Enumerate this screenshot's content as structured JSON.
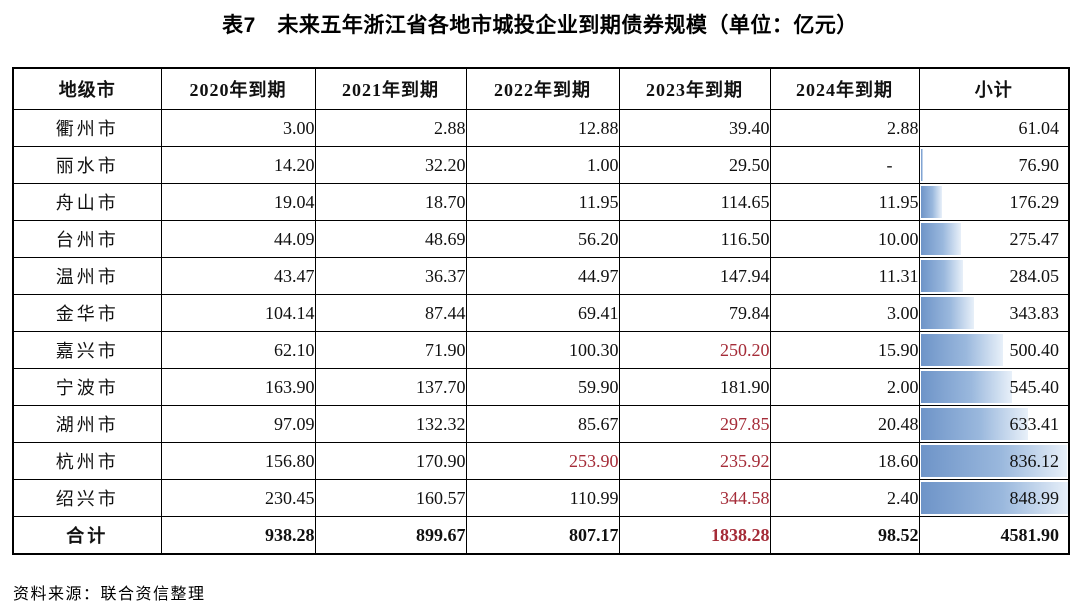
{
  "title": "表7　未来五年浙江省各地市城投企业到期债券规模（单位：亿元）",
  "source_note": "资料来源：联合资信整理",
  "colors": {
    "highlight_bg": "#f8c9ce",
    "highlight_text": "#a52c38",
    "databar_start": "#6e94c8",
    "databar_mid": "#9ab8dd",
    "databar_end": "#e8f0f9",
    "border": "#000000"
  },
  "table": {
    "columns": [
      "地级市",
      "2020年到期",
      "2021年到期",
      "2022年到期",
      "2023年到期",
      "2024年到期",
      "小计"
    ],
    "rows": [
      {
        "city": "衢州市",
        "values": [
          "3.00",
          "2.88",
          "12.88",
          "39.40",
          "2.88"
        ],
        "subtotal": "61.04",
        "highlight": []
      },
      {
        "city": "丽水市",
        "values": [
          "14.20",
          "32.20",
          "1.00",
          "29.50",
          "-"
        ],
        "subtotal": "76.90",
        "highlight": []
      },
      {
        "city": "舟山市",
        "values": [
          "19.04",
          "18.70",
          "11.95",
          "114.65",
          "11.95"
        ],
        "subtotal": "176.29",
        "highlight": []
      },
      {
        "city": "台州市",
        "values": [
          "44.09",
          "48.69",
          "56.20",
          "116.50",
          "10.00"
        ],
        "subtotal": "275.47",
        "highlight": []
      },
      {
        "city": "温州市",
        "values": [
          "43.47",
          "36.37",
          "44.97",
          "147.94",
          "11.31"
        ],
        "subtotal": "284.05",
        "highlight": []
      },
      {
        "city": "金华市",
        "values": [
          "104.14",
          "87.44",
          "69.41",
          "79.84",
          "3.00"
        ],
        "subtotal": "343.83",
        "highlight": []
      },
      {
        "city": "嘉兴市",
        "values": [
          "62.10",
          "71.90",
          "100.30",
          "250.20",
          "15.90"
        ],
        "subtotal": "500.40",
        "highlight": [
          3
        ]
      },
      {
        "city": "宁波市",
        "values": [
          "163.90",
          "137.70",
          "59.90",
          "181.90",
          "2.00"
        ],
        "subtotal": "545.40",
        "highlight": []
      },
      {
        "city": "湖州市",
        "values": [
          "97.09",
          "132.32",
          "85.67",
          "297.85",
          "20.48"
        ],
        "subtotal": "633.41",
        "highlight": [
          3
        ]
      },
      {
        "city": "杭州市",
        "values": [
          "156.80",
          "170.90",
          "253.90",
          "235.92",
          "18.60"
        ],
        "subtotal": "836.12",
        "highlight": [
          2,
          3
        ]
      },
      {
        "city": "绍兴市",
        "values": [
          "230.45",
          "160.57",
          "110.99",
          "344.58",
          "2.40"
        ],
        "subtotal": "848.99",
        "highlight": [
          3
        ]
      },
      {
        "city": "合计",
        "values": [
          "938.28",
          "899.67",
          "807.17",
          "1838.28",
          "98.52"
        ],
        "subtotal": "4581.90",
        "highlight": [
          3
        ],
        "is_total": true
      }
    ]
  }
}
